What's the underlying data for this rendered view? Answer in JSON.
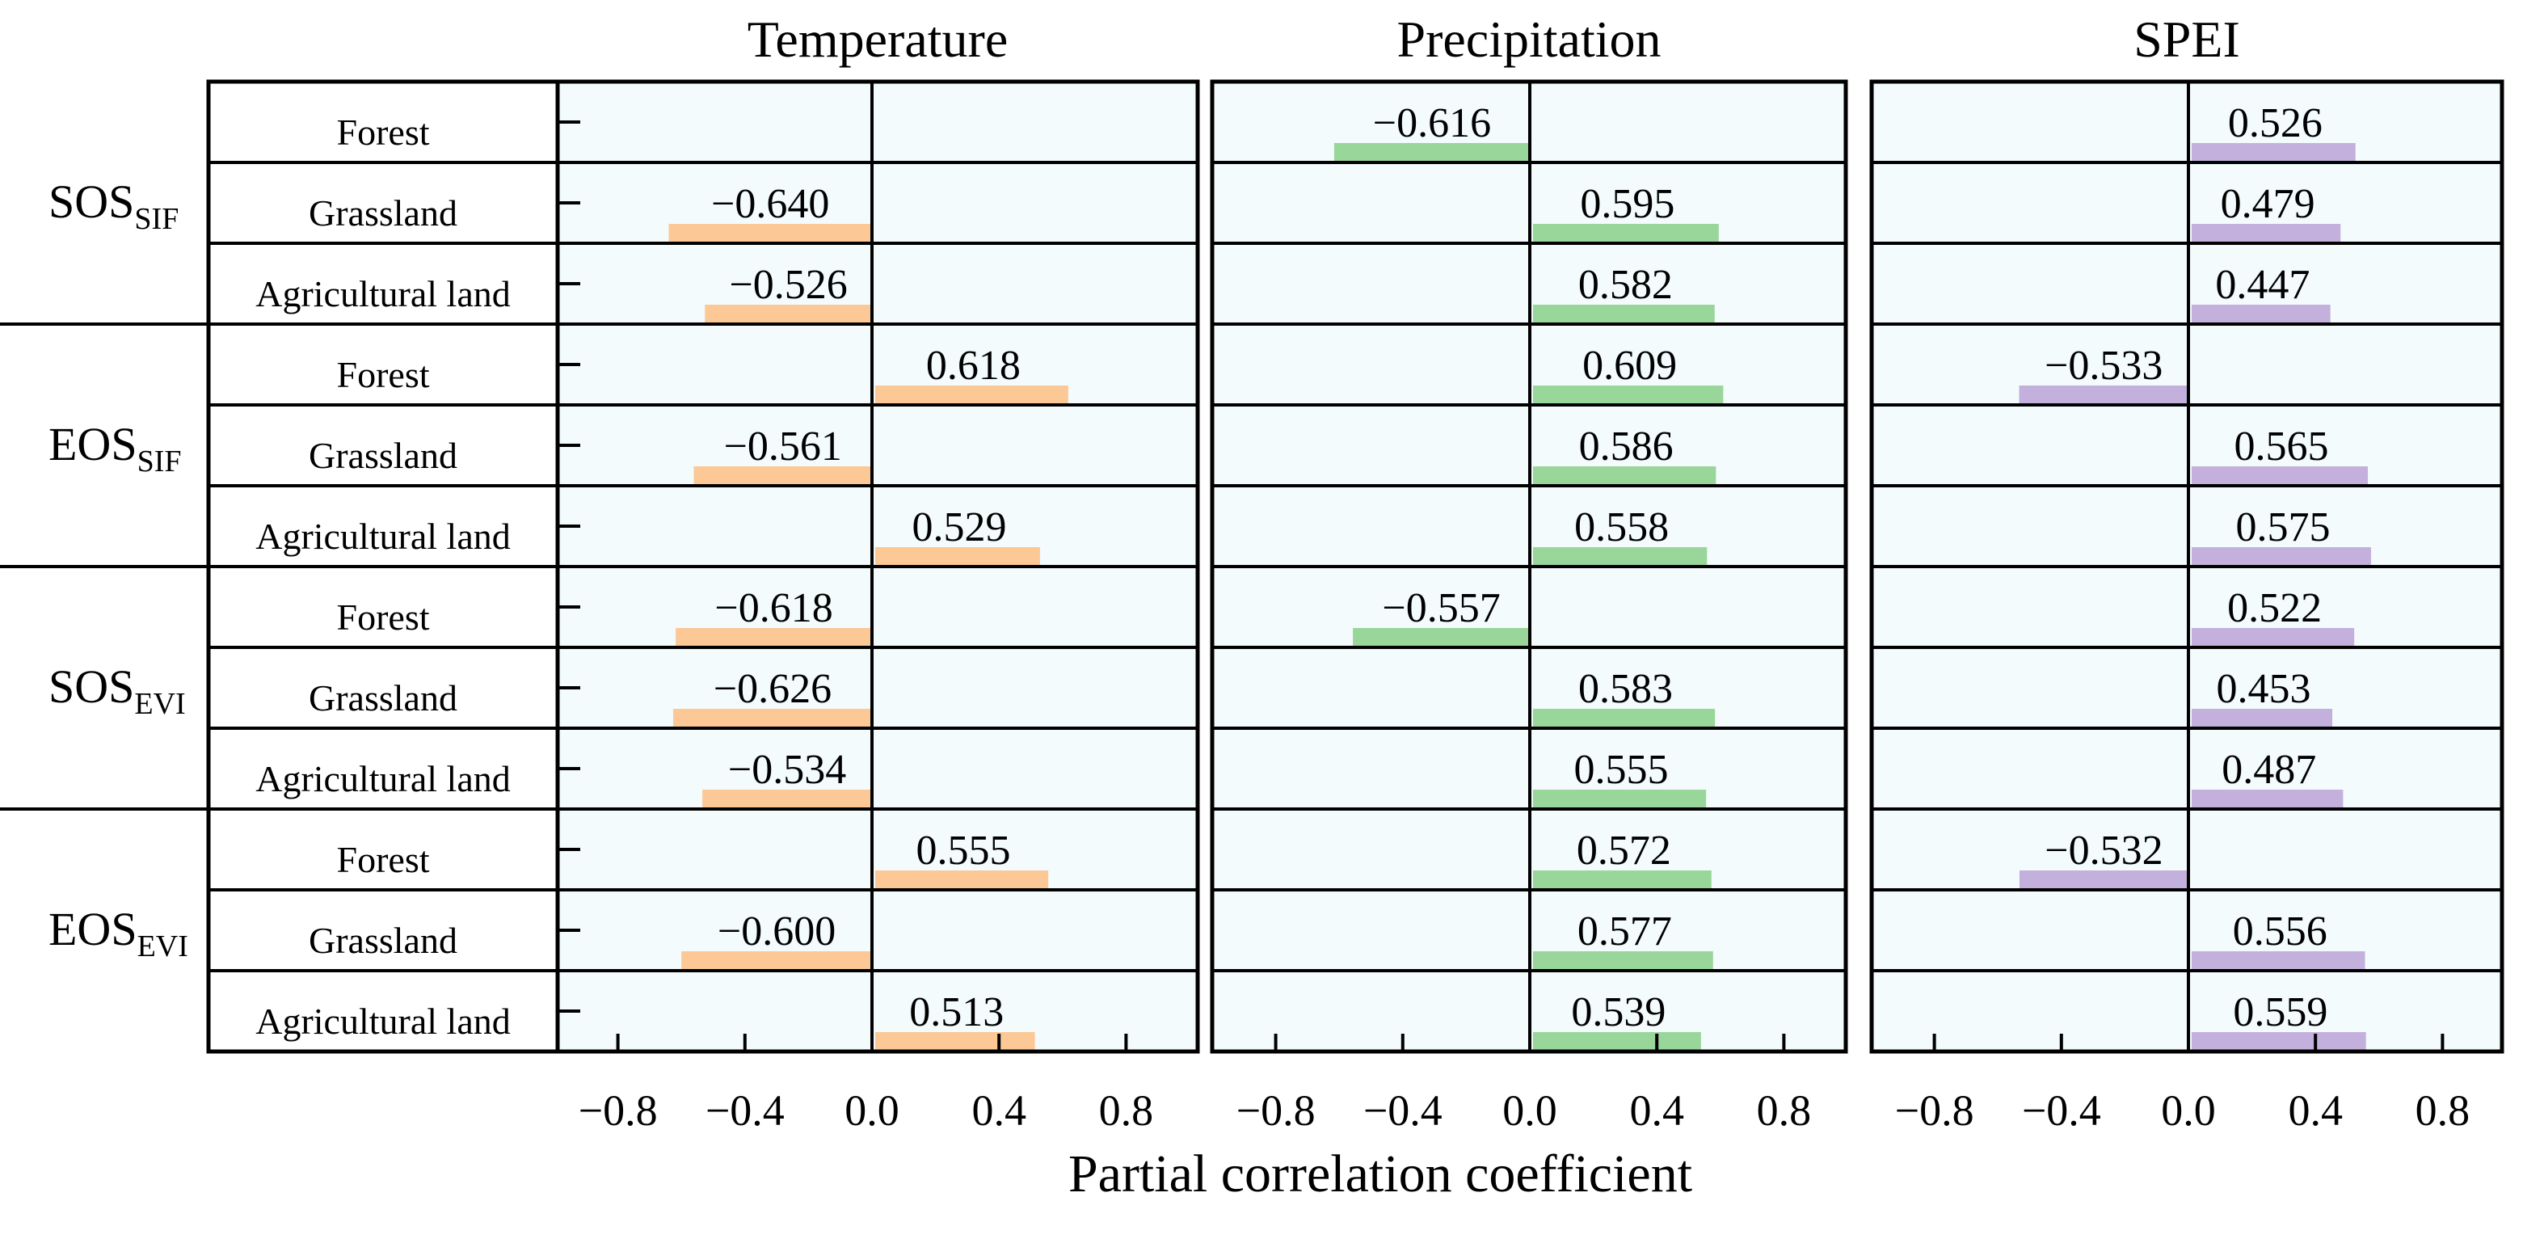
{
  "chart_data": {
    "type": "bar",
    "orientation": "horizontal",
    "panels": [
      "Temperature",
      "Precipitation",
      "SPEI"
    ],
    "panel_colors": [
      "#fcc896",
      "#99d699",
      "#c4b0dc"
    ],
    "panel_background": "#f3fbfd",
    "groups": [
      {
        "base": "SOS",
        "sub": "SIF",
        "rows": [
          "Forest",
          "Grassland",
          "Agricultural land"
        ]
      },
      {
        "base": "EOS",
        "sub": "SIF",
        "rows": [
          "Forest",
          "Grassland",
          "Agricultural land"
        ]
      },
      {
        "base": "SOS",
        "sub": "EVI",
        "rows": [
          "Forest",
          "Grassland",
          "Agricultural land"
        ]
      },
      {
        "base": "EOS",
        "sub": "EVI",
        "rows": [
          "Forest",
          "Grassland",
          "Agricultural land"
        ]
      }
    ],
    "values": {
      "Temperature": [
        null,
        -0.64,
        -0.526,
        0.618,
        -0.561,
        0.529,
        -0.618,
        -0.626,
        -0.534,
        0.555,
        -0.6,
        0.513
      ],
      "Precipitation": [
        -0.616,
        0.595,
        0.582,
        0.609,
        0.586,
        0.558,
        -0.557,
        0.583,
        0.555,
        0.572,
        0.577,
        0.539
      ],
      "SPEI": [
        0.526,
        0.479,
        0.447,
        -0.533,
        0.565,
        0.575,
        0.522,
        0.453,
        0.487,
        -0.532,
        0.556,
        0.559
      ]
    },
    "value_labels": {
      "Temperature": [
        "",
        "−0.640",
        "−0.526",
        "0.618",
        "−0.561",
        "0.529",
        "−0.618",
        "−0.626",
        "−0.534",
        "0.555",
        "−0.600",
        "0.513"
      ],
      "Precipitation": [
        "−0.616",
        "0.595",
        "0.582",
        "0.609",
        "0.586",
        "0.558",
        "−0.557",
        "0.583",
        "0.555",
        "0.572",
        "0.577",
        "0.539"
      ],
      "SPEI": [
        "0.526",
        "0.479",
        "0.447",
        "−0.533",
        "0.565",
        "0.575",
        "0.522",
        "0.453",
        "0.487",
        "−0.532",
        "0.556",
        "0.559"
      ]
    },
    "xlim": [
      -1.0,
      1.0
    ],
    "xticks": [
      -0.8,
      -0.4,
      0.0,
      0.4,
      0.8
    ],
    "xtick_labels": [
      "−0.8",
      "−0.4",
      "0.0",
      "0.4",
      "0.8"
    ],
    "xlabel": "Partial correlation coefficient"
  }
}
